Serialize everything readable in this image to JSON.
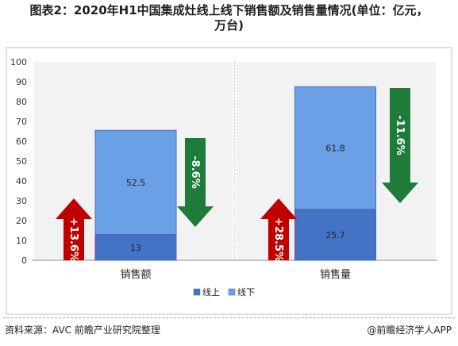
{
  "title_line1": "图表2：2020年H1中国集成灶线上线下销售额及销售量情况(单位：亿元，",
  "title_line2": "万台)",
  "source": "资料来源：AVC 前瞻产业研究院整理",
  "brand": "@前瞻经济学人APP",
  "colors": {
    "online": "#4472c4",
    "offline": "#6aa0e6",
    "arrow_up": "#c00000",
    "arrow_down": "#1e7b3a",
    "panel_bg": "#f2f2f2"
  },
  "chart_data": {
    "type": "bar",
    "stacked": true,
    "categories": [
      "销售额",
      "销售量"
    ],
    "series": [
      {
        "name": "线上",
        "values": [
          13,
          25.7
        ]
      },
      {
        "name": "线下",
        "values": [
          52.5,
          61.8
        ]
      }
    ],
    "ylim": [
      0,
      100
    ],
    "yticks": [
      0,
      10,
      20,
      30,
      40,
      50,
      60,
      70,
      80,
      90,
      100
    ],
    "legend_position": "bottom",
    "annotations": [
      {
        "category": "销售额",
        "series": "线上",
        "label": "+13.6%",
        "direction": "up"
      },
      {
        "category": "销售额",
        "series": "线下",
        "label": "-8.6%",
        "direction": "down"
      },
      {
        "category": "销售量",
        "series": "线上",
        "label": "+28.5%",
        "direction": "up"
      },
      {
        "category": "销售量",
        "series": "线下",
        "label": "-11.6%",
        "direction": "down"
      }
    ]
  }
}
